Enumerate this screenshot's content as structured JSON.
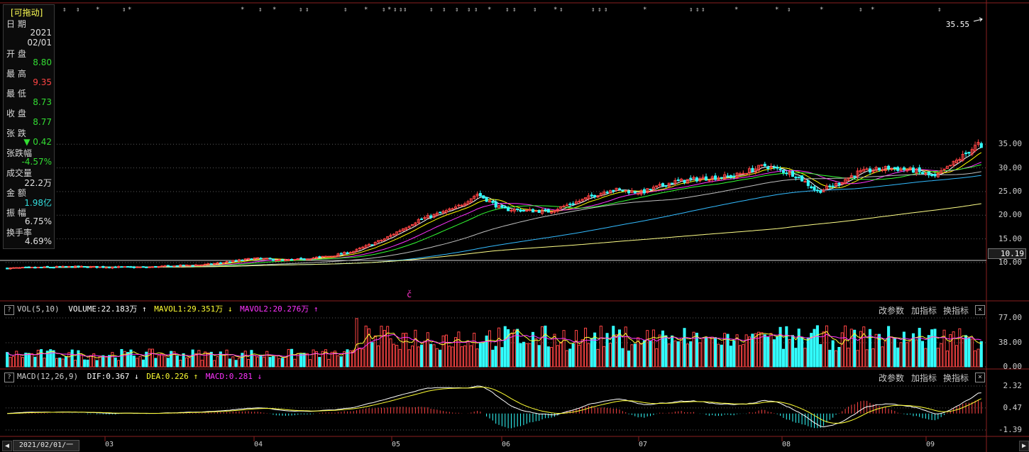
{
  "panel": {
    "title": "[可拖动]",
    "rows": [
      {
        "label": "日 期",
        "value": "2021\n02/01",
        "color": "#e0e0e0"
      },
      {
        "label": "开 盘",
        "value": "8.80",
        "color": "#33dd33"
      },
      {
        "label": "最 高",
        "value": "9.35",
        "color": "#ff4444"
      },
      {
        "label": "最 低",
        "value": "8.73",
        "color": "#33dd33"
      },
      {
        "label": "收 盘",
        "value": "8.77",
        "color": "#33dd33"
      },
      {
        "label": "张 跌",
        "value": "▼ 0.42",
        "color": "#33dd33"
      },
      {
        "label": "张跌幅",
        "value": "-4.57%",
        "color": "#33dd33"
      },
      {
        "label": "成交量",
        "value": "22.2万",
        "color": "#e0e0e0"
      },
      {
        "label": "金 额",
        "value": "1.98亿",
        "color": "#33dddd"
      },
      {
        "label": "振 幅",
        "value": "6.75%",
        "color": "#e0e0e0"
      },
      {
        "label": "换手率",
        "value": "4.69%",
        "color": "#e0e0e0"
      }
    ]
  },
  "main": {
    "price_label": "35.55",
    "current_price": "10.19",
    "c_marker": "č",
    "yticks": [
      "35.00",
      "30.00",
      "25.00",
      "20.00",
      "15.00",
      "10.00"
    ]
  },
  "vol_header": {
    "title": "VOL(5,10)",
    "volume": "VOLUME:22.183万",
    "mavol1": "MAVOL1:29.351万",
    "mavol2": "MAVOL2:20.276万",
    "yticks": [
      "77.00",
      "38.00",
      "0.00"
    ]
  },
  "macd_header": {
    "title": "MACD(12,26,9)",
    "dif": "DIF:0.367",
    "dea": "DEA:0.226",
    "macd": "MACD:0.281",
    "yticks": [
      "2.32",
      "0.47",
      "-1.39"
    ]
  },
  "toolbar": {
    "params": "改参数",
    "add": "加指标",
    "swap": "换指标",
    "close": "×",
    "help": "?"
  },
  "xaxis": {
    "start": "2021/02/01/一",
    "months": [
      "03",
      "04",
      "05",
      "06",
      "07",
      "08",
      "09"
    ]
  },
  "nav": {
    "prev": "◀",
    "next": "▶"
  },
  "colors": {
    "up": "#ff4444",
    "down": "#33ffff",
    "ma5": "#ffffff",
    "ma10": "#ffff00",
    "ma20": "#ff33ff",
    "ma30": "#33ff33",
    "ma60": "#c0c0c0",
    "ma120": "#33bbff",
    "ma250": "#ffff88"
  },
  "chart_data": {
    "type": "candlestick",
    "x_range": [
      "2021-02-01",
      "2021-09"
    ],
    "ylim": [
      7.5,
      36
    ],
    "start_price": 8.77,
    "waypoints": [
      [
        0,
        8.8
      ],
      [
        20,
        9.1
      ],
      [
        45,
        9.0
      ],
      [
        65,
        9.6
      ],
      [
        80,
        10.9
      ],
      [
        90,
        10.4
      ],
      [
        105,
        11.4
      ],
      [
        112,
        12.4
      ],
      [
        122,
        15.0
      ],
      [
        133,
        19.0
      ],
      [
        145,
        21.5
      ],
      [
        152,
        24.5
      ],
      [
        160,
        21.3
      ],
      [
        168,
        21.0
      ],
      [
        175,
        20.8
      ],
      [
        185,
        23.0
      ],
      [
        195,
        25.5
      ],
      [
        205,
        24.8
      ],
      [
        215,
        27.0
      ],
      [
        225,
        27.8
      ],
      [
        235,
        28.3
      ],
      [
        245,
        30.5
      ],
      [
        255,
        28.5
      ],
      [
        262,
        25.0
      ],
      [
        268,
        26.5
      ],
      [
        275,
        29.0
      ],
      [
        285,
        30.0
      ],
      [
        293,
        29.5
      ],
      [
        300,
        28.0
      ],
      [
        308,
        32.0
      ],
      [
        315,
        35.55
      ]
    ],
    "moving_averages": [
      "MA5",
      "MA10",
      "MA20",
      "MA30",
      "MA60",
      "MA120",
      "MA250"
    ],
    "volume_ylim": [
      0,
      77
    ],
    "macd_ylim": [
      -1.39,
      2.32
    ]
  }
}
